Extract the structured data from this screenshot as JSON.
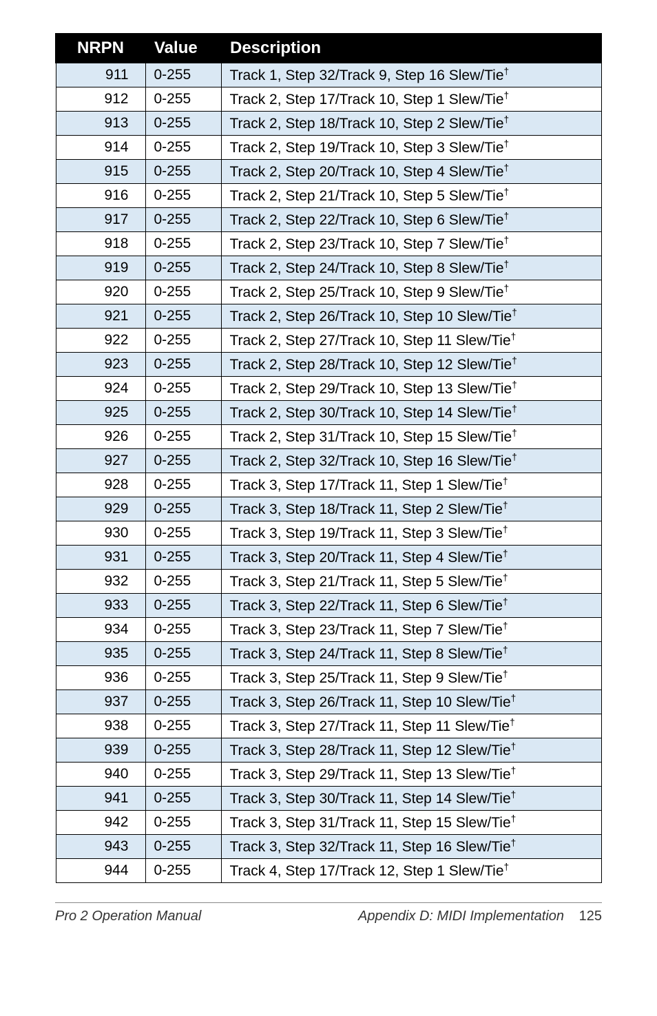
{
  "table": {
    "headers": {
      "nrpn": "NRPN",
      "value": "Value",
      "desc": "Description"
    },
    "rows": [
      {
        "nrpn": "911",
        "value": "0-255",
        "desc": "Track 1, Step 32/Track 9, Step 16 Slew/Tie",
        "dagger": true
      },
      {
        "nrpn": "912",
        "value": "0-255",
        "desc": "Track 2, Step 17/Track 10, Step 1 Slew/Tie",
        "dagger": true
      },
      {
        "nrpn": "913",
        "value": "0-255",
        "desc": "Track 2, Step 18/Track 10, Step 2 Slew/Tie",
        "dagger": true
      },
      {
        "nrpn": "914",
        "value": "0-255",
        "desc": "Track 2, Step 19/Track 10, Step 3 Slew/Tie",
        "dagger": true
      },
      {
        "nrpn": "915",
        "value": "0-255",
        "desc": "Track 2, Step 20/Track 10, Step 4 Slew/Tie",
        "dagger": true
      },
      {
        "nrpn": "916",
        "value": "0-255",
        "desc": "Track 2, Step 21/Track 10, Step 5 Slew/Tie",
        "dagger": true
      },
      {
        "nrpn": "917",
        "value": "0-255",
        "desc": "Track 2, Step 22/Track 10, Step 6 Slew/Tie",
        "dagger": true
      },
      {
        "nrpn": "918",
        "value": "0-255",
        "desc": "Track 2, Step 23/Track 10, Step 7 Slew/Tie",
        "dagger": true
      },
      {
        "nrpn": "919",
        "value": "0-255",
        "desc": "Track 2, Step 24/Track 10, Step 8 Slew/Tie",
        "dagger": true
      },
      {
        "nrpn": "920",
        "value": "0-255",
        "desc": "Track 2, Step 25/Track 10, Step 9 Slew/Tie",
        "dagger": true
      },
      {
        "nrpn": "921",
        "value": "0-255",
        "desc": "Track 2, Step 26/Track 10, Step 10 Slew/Tie",
        "dagger": true
      },
      {
        "nrpn": "922",
        "value": "0-255",
        "desc": "Track 2, Step 27/Track 10, Step 11 Slew/Tie",
        "dagger": true
      },
      {
        "nrpn": "923",
        "value": "0-255",
        "desc": "Track 2, Step 28/Track 10, Step 12 Slew/Tie",
        "dagger": true
      },
      {
        "nrpn": "924",
        "value": "0-255",
        "desc": "Track 2, Step 29/Track 10, Step 13 Slew/Tie",
        "dagger": true
      },
      {
        "nrpn": "925",
        "value": "0-255",
        "desc": "Track 2, Step 30/Track 10, Step 14 Slew/Tie",
        "dagger": true
      },
      {
        "nrpn": "926",
        "value": "0-255",
        "desc": "Track 2, Step 31/Track 10, Step 15 Slew/Tie",
        "dagger": true
      },
      {
        "nrpn": "927",
        "value": "0-255",
        "desc": "Track 2, Step 32/Track 10, Step 16 Slew/Tie",
        "dagger": true
      },
      {
        "nrpn": "928",
        "value": "0-255",
        "desc": "Track 3, Step 17/Track 11, Step 1 Slew/Tie",
        "dagger": true
      },
      {
        "nrpn": "929",
        "value": "0-255",
        "desc": "Track 3, Step 18/Track 11, Step 2 Slew/Tie",
        "dagger": true
      },
      {
        "nrpn": "930",
        "value": "0-255",
        "desc": "Track 3, Step 19/Track 11, Step 3 Slew/Tie",
        "dagger": true
      },
      {
        "nrpn": "931",
        "value": "0-255",
        "desc": "Track 3, Step 20/Track 11, Step 4 Slew/Tie",
        "dagger": true
      },
      {
        "nrpn": "932",
        "value": "0-255",
        "desc": "Track 3, Step 21/Track 11, Step 5 Slew/Tie",
        "dagger": true
      },
      {
        "nrpn": "933",
        "value": "0-255",
        "desc": "Track 3, Step 22/Track 11, Step 6 Slew/Tie",
        "dagger": true
      },
      {
        "nrpn": "934",
        "value": "0-255",
        "desc": "Track 3, Step 23/Track 11, Step 7 Slew/Tie",
        "dagger": true
      },
      {
        "nrpn": "935",
        "value": "0-255",
        "desc": "Track 3, Step 24/Track 11, Step 8 Slew/Tie",
        "dagger": true
      },
      {
        "nrpn": "936",
        "value": "0-255",
        "desc": "Track 3, Step 25/Track 11, Step 9 Slew/Tie",
        "dagger": true
      },
      {
        "nrpn": "937",
        "value": "0-255",
        "desc": "Track 3, Step 26/Track 11, Step 10 Slew/Tie",
        "dagger": true
      },
      {
        "nrpn": "938",
        "value": "0-255",
        "desc": "Track 3, Step 27/Track 11, Step 11 Slew/Tie",
        "dagger": true
      },
      {
        "nrpn": "939",
        "value": "0-255",
        "desc": "Track 3, Step 28/Track 11, Step 12 Slew/Tie",
        "dagger": true
      },
      {
        "nrpn": "940",
        "value": "0-255",
        "desc": "Track 3, Step 29/Track 11, Step 13 Slew/Tie",
        "dagger": true
      },
      {
        "nrpn": "941",
        "value": "0-255",
        "desc": "Track 3, Step 30/Track 11, Step 14 Slew/Tie",
        "dagger": true
      },
      {
        "nrpn": "942",
        "value": "0-255",
        "desc": "Track 3, Step 31/Track 11, Step 15 Slew/Tie",
        "dagger": true
      },
      {
        "nrpn": "943",
        "value": "0-255",
        "desc": "Track 3, Step 32/Track 11, Step 16 Slew/Tie",
        "dagger": true
      },
      {
        "nrpn": "944",
        "value": "0-255",
        "desc": "Track 4, Step 17/Track 12, Step 1 Slew/Tie",
        "dagger": true
      }
    ]
  },
  "footer": {
    "left": "Pro 2 Operation Manual",
    "right": "Appendix D: MIDI Implementation",
    "page": "125"
  },
  "style": {
    "even_row_bg": "#dae8f4",
    "odd_row_bg": "#ffffff",
    "header_bg": "#000000",
    "header_fg": "#ffffff",
    "border_color": "#000000"
  }
}
